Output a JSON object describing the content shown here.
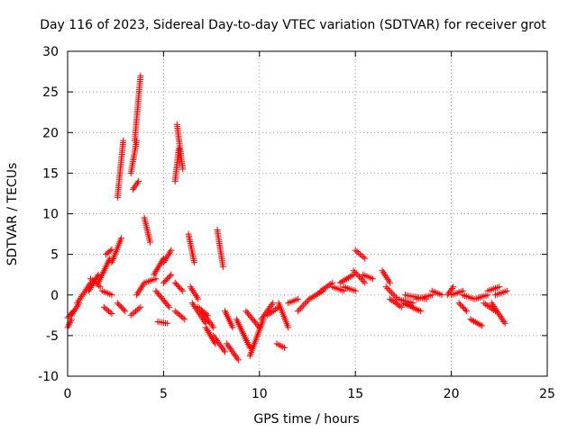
{
  "chart_data": {
    "type": "scatter",
    "title": "Day 116 of 2023, Sidereal Day-to-day VTEC variation (SDTVAR) for receiver grot",
    "xlabel": "GPS time / hours",
    "ylabel": "SDTVAR / TECUs",
    "xlim": [
      0,
      25
    ],
    "ylim": [
      -10,
      30
    ],
    "xticks": [
      0,
      5,
      10,
      15,
      20,
      25
    ],
    "yticks": [
      -10,
      -5,
      0,
      5,
      10,
      15,
      20,
      25,
      30
    ],
    "grid": true,
    "marker": "+",
    "color": "#ff0000",
    "segments": [
      {
        "x0": 0.0,
        "x1": 0.3,
        "y0": -2.8,
        "y1": -2.0
      },
      {
        "x0": 0.0,
        "x1": 0.2,
        "y0": -4.0,
        "y1": -3.0
      },
      {
        "x0": 0.2,
        "x1": 0.6,
        "y0": -2.5,
        "y1": -1.0
      },
      {
        "x0": 0.5,
        "x1": 1.2,
        "y0": -1.0,
        "y1": 1.5
      },
      {
        "x0": 1.1,
        "x1": 1.6,
        "y0": 0.5,
        "y1": 2.5
      },
      {
        "x0": 1.2,
        "x1": 1.7,
        "y0": 2.0,
        "y1": 1.0
      },
      {
        "x0": 1.6,
        "x1": 2.2,
        "y0": 1.5,
        "y1": 4.5
      },
      {
        "x0": 2.0,
        "x1": 2.3,
        "y0": 5.0,
        "y1": 5.6
      },
      {
        "x0": 1.8,
        "x1": 2.3,
        "y0": 0.5,
        "y1": 0.0
      },
      {
        "x0": 1.9,
        "x1": 2.3,
        "y0": -1.5,
        "y1": -2.3
      },
      {
        "x0": 2.3,
        "x1": 2.8,
        "y0": 4.0,
        "y1": 7.0
      },
      {
        "x0": 2.6,
        "x1": 2.9,
        "y0": 12.0,
        "y1": 19.0
      },
      {
        "x0": 2.6,
        "x1": 3.0,
        "y0": -1.0,
        "y1": -2.0
      },
      {
        "x0": 3.3,
        "x1": 3.6,
        "y0": 15.0,
        "y1": 19.0
      },
      {
        "x0": 3.4,
        "x1": 3.7,
        "y0": 13.0,
        "y1": 14.0
      },
      {
        "x0": 3.5,
        "x1": 3.8,
        "y0": 19.0,
        "y1": 27.0
      },
      {
        "x0": 3.3,
        "x1": 3.8,
        "y0": -2.5,
        "y1": -1.5
      },
      {
        "x0": 3.6,
        "x1": 4.0,
        "y0": 0.0,
        "y1": 1.5
      },
      {
        "x0": 4.0,
        "x1": 4.3,
        "y0": 9.5,
        "y1": 6.5
      },
      {
        "x0": 4.0,
        "x1": 4.6,
        "y0": 1.5,
        "y1": 2.0
      },
      {
        "x0": 4.5,
        "x1": 5.0,
        "y0": 2.5,
        "y1": 4.5
      },
      {
        "x0": 4.6,
        "x1": 5.3,
        "y0": 0.5,
        "y1": -1.5
      },
      {
        "x0": 4.7,
        "x1": 5.2,
        "y0": -3.3,
        "y1": -3.5
      },
      {
        "x0": 5.0,
        "x1": 5.4,
        "y0": 4.0,
        "y1": 5.5
      },
      {
        "x0": 5.0,
        "x1": 5.4,
        "y0": 1.5,
        "y1": 2.5
      },
      {
        "x0": 5.6,
        "x1": 5.8,
        "y0": 14.0,
        "y1": 18.0
      },
      {
        "x0": 5.7,
        "x1": 6.0,
        "y0": 21.0,
        "y1": 15.5
      },
      {
        "x0": 5.6,
        "x1": 6.1,
        "y0": -2.0,
        "y1": -3.0
      },
      {
        "x0": 5.6,
        "x1": 6.0,
        "y0": 1.5,
        "y1": 0.5
      },
      {
        "x0": 6.3,
        "x1": 6.6,
        "y0": 7.5,
        "y1": 4.0
      },
      {
        "x0": 6.4,
        "x1": 6.8,
        "y0": 1.0,
        "y1": -0.5
      },
      {
        "x0": 6.5,
        "x1": 7.2,
        "y0": -1.0,
        "y1": -3.5
      },
      {
        "x0": 6.8,
        "x1": 7.3,
        "y0": -1.5,
        "y1": -2.5
      },
      {
        "x0": 7.0,
        "x1": 7.6,
        "y0": -2.0,
        "y1": -4.0
      },
      {
        "x0": 7.2,
        "x1": 7.7,
        "y0": -4.0,
        "y1": -6.0
      },
      {
        "x0": 7.8,
        "x1": 8.1,
        "y0": 8.0,
        "y1": 3.5
      },
      {
        "x0": 7.6,
        "x1": 8.2,
        "y0": -5.0,
        "y1": -7.0
      },
      {
        "x0": 8.2,
        "x1": 8.6,
        "y0": -2.0,
        "y1": -4.0
      },
      {
        "x0": 8.3,
        "x1": 8.9,
        "y0": -6.0,
        "y1": -8.0
      },
      {
        "x0": 8.8,
        "x1": 9.5,
        "y0": -3.0,
        "y1": -6.5
      },
      {
        "x0": 9.3,
        "x1": 10.0,
        "y0": -2.0,
        "y1": -4.0
      },
      {
        "x0": 9.5,
        "x1": 10.2,
        "y0": -7.5,
        "y1": -3.0
      },
      {
        "x0": 10.1,
        "x1": 10.7,
        "y0": -3.0,
        "y1": -1.0
      },
      {
        "x0": 10.4,
        "x1": 11.0,
        "y0": -2.5,
        "y1": -1.5
      },
      {
        "x0": 10.9,
        "x1": 11.3,
        "y0": -6.0,
        "y1": -6.5
      },
      {
        "x0": 11.0,
        "x1": 11.5,
        "y0": -1.0,
        "y1": -4.0
      },
      {
        "x0": 11.5,
        "x1": 12.0,
        "y0": -1.0,
        "y1": -0.5
      },
      {
        "x0": 12.0,
        "x1": 12.6,
        "y0": -2.0,
        "y1": -0.5
      },
      {
        "x0": 12.6,
        "x1": 13.3,
        "y0": -0.5,
        "y1": 0.5
      },
      {
        "x0": 13.2,
        "x1": 13.8,
        "y0": 0.5,
        "y1": 1.5
      },
      {
        "x0": 13.8,
        "x1": 14.4,
        "y0": 1.0,
        "y1": 0.5
      },
      {
        "x0": 14.2,
        "x1": 14.9,
        "y0": 1.5,
        "y1": 2.5
      },
      {
        "x0": 14.4,
        "x1": 15.0,
        "y0": 1.0,
        "y1": 0.5
      },
      {
        "x0": 14.9,
        "x1": 15.5,
        "y0": 3.0,
        "y1": 1.5
      },
      {
        "x0": 15.0,
        "x1": 15.5,
        "y0": 5.5,
        "y1": 4.5
      },
      {
        "x0": 15.4,
        "x1": 15.9,
        "y0": 2.5,
        "y1": 2.0
      },
      {
        "x0": 16.4,
        "x1": 16.8,
        "y0": 3.0,
        "y1": 1.5
      },
      {
        "x0": 16.6,
        "x1": 17.2,
        "y0": 1.0,
        "y1": -0.5
      },
      {
        "x0": 16.8,
        "x1": 17.4,
        "y0": -0.5,
        "y1": -1.5
      },
      {
        "x0": 17.2,
        "x1": 18.0,
        "y0": -0.5,
        "y1": -1.0
      },
      {
        "x0": 17.5,
        "x1": 18.4,
        "y0": -1.0,
        "y1": -2.0
      },
      {
        "x0": 17.6,
        "x1": 18.7,
        "y0": 0.0,
        "y1": -0.5
      },
      {
        "x0": 18.2,
        "x1": 19.0,
        "y0": -0.5,
        "y1": 0.0
      },
      {
        "x0": 19.0,
        "x1": 19.5,
        "y0": 0.5,
        "y1": 0.0
      },
      {
        "x0": 19.8,
        "x1": 20.1,
        "y0": 0.0,
        "y1": 1.0
      },
      {
        "x0": 20.0,
        "x1": 20.6,
        "y0": 0.0,
        "y1": 0.5
      },
      {
        "x0": 20.4,
        "x1": 20.8,
        "y0": -1.0,
        "y1": -2.0
      },
      {
        "x0": 20.6,
        "x1": 21.2,
        "y0": 0.0,
        "y1": -0.5
      },
      {
        "x0": 21.0,
        "x1": 21.6,
        "y0": -3.0,
        "y1": -3.8
      },
      {
        "x0": 21.2,
        "x1": 21.9,
        "y0": -0.5,
        "y1": 0.0
      },
      {
        "x0": 21.7,
        "x1": 22.3,
        "y0": -1.0,
        "y1": -2.0
      },
      {
        "x0": 21.9,
        "x1": 22.5,
        "y0": 0.5,
        "y1": 1.0
      },
      {
        "x0": 22.1,
        "x1": 22.8,
        "y0": -1.0,
        "y1": -3.5
      },
      {
        "x0": 22.3,
        "x1": 22.9,
        "y0": 0.0,
        "y1": 0.5
      }
    ]
  }
}
